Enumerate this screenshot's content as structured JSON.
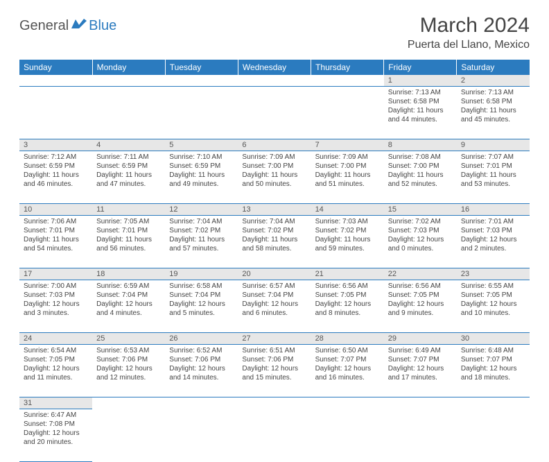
{
  "logo": {
    "text1": "General",
    "text2": "Blue"
  },
  "title": "March 2024",
  "location": "Puerta del Llano, Mexico",
  "colors": {
    "header_bg": "#2b7bbf",
    "daynum_bg": "#e7e7e7",
    "border": "#2b7bbf",
    "text": "#444444"
  },
  "day_headers": [
    "Sunday",
    "Monday",
    "Tuesday",
    "Wednesday",
    "Thursday",
    "Friday",
    "Saturday"
  ],
  "weeks": [
    [
      null,
      null,
      null,
      null,
      null,
      {
        "n": "1",
        "sr": "Sunrise: 7:13 AM",
        "ss": "Sunset: 6:58 PM",
        "dl": "Daylight: 11 hours and 44 minutes."
      },
      {
        "n": "2",
        "sr": "Sunrise: 7:13 AM",
        "ss": "Sunset: 6:58 PM",
        "dl": "Daylight: 11 hours and 45 minutes."
      }
    ],
    [
      {
        "n": "3",
        "sr": "Sunrise: 7:12 AM",
        "ss": "Sunset: 6:59 PM",
        "dl": "Daylight: 11 hours and 46 minutes."
      },
      {
        "n": "4",
        "sr": "Sunrise: 7:11 AM",
        "ss": "Sunset: 6:59 PM",
        "dl": "Daylight: 11 hours and 47 minutes."
      },
      {
        "n": "5",
        "sr": "Sunrise: 7:10 AM",
        "ss": "Sunset: 6:59 PM",
        "dl": "Daylight: 11 hours and 49 minutes."
      },
      {
        "n": "6",
        "sr": "Sunrise: 7:09 AM",
        "ss": "Sunset: 7:00 PM",
        "dl": "Daylight: 11 hours and 50 minutes."
      },
      {
        "n": "7",
        "sr": "Sunrise: 7:09 AM",
        "ss": "Sunset: 7:00 PM",
        "dl": "Daylight: 11 hours and 51 minutes."
      },
      {
        "n": "8",
        "sr": "Sunrise: 7:08 AM",
        "ss": "Sunset: 7:00 PM",
        "dl": "Daylight: 11 hours and 52 minutes."
      },
      {
        "n": "9",
        "sr": "Sunrise: 7:07 AM",
        "ss": "Sunset: 7:01 PM",
        "dl": "Daylight: 11 hours and 53 minutes."
      }
    ],
    [
      {
        "n": "10",
        "sr": "Sunrise: 7:06 AM",
        "ss": "Sunset: 7:01 PM",
        "dl": "Daylight: 11 hours and 54 minutes."
      },
      {
        "n": "11",
        "sr": "Sunrise: 7:05 AM",
        "ss": "Sunset: 7:01 PM",
        "dl": "Daylight: 11 hours and 56 minutes."
      },
      {
        "n": "12",
        "sr": "Sunrise: 7:04 AM",
        "ss": "Sunset: 7:02 PM",
        "dl": "Daylight: 11 hours and 57 minutes."
      },
      {
        "n": "13",
        "sr": "Sunrise: 7:04 AM",
        "ss": "Sunset: 7:02 PM",
        "dl": "Daylight: 11 hours and 58 minutes."
      },
      {
        "n": "14",
        "sr": "Sunrise: 7:03 AM",
        "ss": "Sunset: 7:02 PM",
        "dl": "Daylight: 11 hours and 59 minutes."
      },
      {
        "n": "15",
        "sr": "Sunrise: 7:02 AM",
        "ss": "Sunset: 7:03 PM",
        "dl": "Daylight: 12 hours and 0 minutes."
      },
      {
        "n": "16",
        "sr": "Sunrise: 7:01 AM",
        "ss": "Sunset: 7:03 PM",
        "dl": "Daylight: 12 hours and 2 minutes."
      }
    ],
    [
      {
        "n": "17",
        "sr": "Sunrise: 7:00 AM",
        "ss": "Sunset: 7:03 PM",
        "dl": "Daylight: 12 hours and 3 minutes."
      },
      {
        "n": "18",
        "sr": "Sunrise: 6:59 AM",
        "ss": "Sunset: 7:04 PM",
        "dl": "Daylight: 12 hours and 4 minutes."
      },
      {
        "n": "19",
        "sr": "Sunrise: 6:58 AM",
        "ss": "Sunset: 7:04 PM",
        "dl": "Daylight: 12 hours and 5 minutes."
      },
      {
        "n": "20",
        "sr": "Sunrise: 6:57 AM",
        "ss": "Sunset: 7:04 PM",
        "dl": "Daylight: 12 hours and 6 minutes."
      },
      {
        "n": "21",
        "sr": "Sunrise: 6:56 AM",
        "ss": "Sunset: 7:05 PM",
        "dl": "Daylight: 12 hours and 8 minutes."
      },
      {
        "n": "22",
        "sr": "Sunrise: 6:56 AM",
        "ss": "Sunset: 7:05 PM",
        "dl": "Daylight: 12 hours and 9 minutes."
      },
      {
        "n": "23",
        "sr": "Sunrise: 6:55 AM",
        "ss": "Sunset: 7:05 PM",
        "dl": "Daylight: 12 hours and 10 minutes."
      }
    ],
    [
      {
        "n": "24",
        "sr": "Sunrise: 6:54 AM",
        "ss": "Sunset: 7:05 PM",
        "dl": "Daylight: 12 hours and 11 minutes."
      },
      {
        "n": "25",
        "sr": "Sunrise: 6:53 AM",
        "ss": "Sunset: 7:06 PM",
        "dl": "Daylight: 12 hours and 12 minutes."
      },
      {
        "n": "26",
        "sr": "Sunrise: 6:52 AM",
        "ss": "Sunset: 7:06 PM",
        "dl": "Daylight: 12 hours and 14 minutes."
      },
      {
        "n": "27",
        "sr": "Sunrise: 6:51 AM",
        "ss": "Sunset: 7:06 PM",
        "dl": "Daylight: 12 hours and 15 minutes."
      },
      {
        "n": "28",
        "sr": "Sunrise: 6:50 AM",
        "ss": "Sunset: 7:07 PM",
        "dl": "Daylight: 12 hours and 16 minutes."
      },
      {
        "n": "29",
        "sr": "Sunrise: 6:49 AM",
        "ss": "Sunset: 7:07 PM",
        "dl": "Daylight: 12 hours and 17 minutes."
      },
      {
        "n": "30",
        "sr": "Sunrise: 6:48 AM",
        "ss": "Sunset: 7:07 PM",
        "dl": "Daylight: 12 hours and 18 minutes."
      }
    ],
    [
      {
        "n": "31",
        "sr": "Sunrise: 6:47 AM",
        "ss": "Sunset: 7:08 PM",
        "dl": "Daylight: 12 hours and 20 minutes."
      },
      null,
      null,
      null,
      null,
      null,
      null
    ]
  ]
}
